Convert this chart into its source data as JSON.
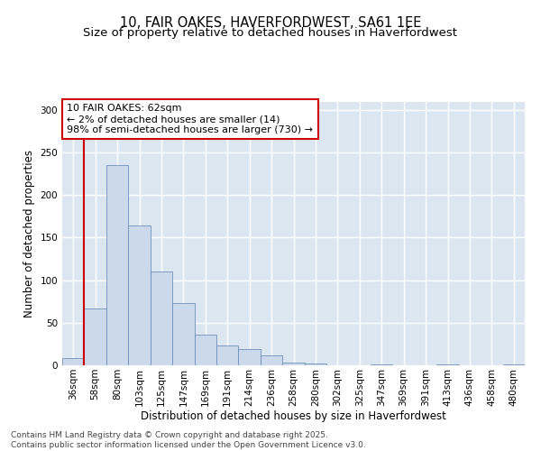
{
  "title_line1": "10, FAIR OAKES, HAVERFORDWEST, SA61 1EE",
  "title_line2": "Size of property relative to detached houses in Haverfordwest",
  "xlabel": "Distribution of detached houses by size in Haverfordwest",
  "ylabel": "Number of detached properties",
  "categories": [
    "36sqm",
    "58sqm",
    "80sqm",
    "103sqm",
    "125sqm",
    "147sqm",
    "169sqm",
    "191sqm",
    "214sqm",
    "236sqm",
    "258sqm",
    "280sqm",
    "302sqm",
    "325sqm",
    "347sqm",
    "369sqm",
    "391sqm",
    "413sqm",
    "436sqm",
    "458sqm",
    "480sqm"
  ],
  "values": [
    8,
    67,
    235,
    164,
    110,
    73,
    36,
    23,
    19,
    12,
    3,
    2,
    0,
    0,
    1,
    0,
    0,
    1,
    0,
    0,
    1
  ],
  "bar_color": "#ccd9ec",
  "bar_edge_color": "#7090bb",
  "vline_x": 0.5,
  "vline_color": "#cc0000",
  "annotation_text": "10 FAIR OAKES: 62sqm\n← 2% of detached houses are smaller (14)\n98% of semi-detached houses are larger (730) →",
  "annotation_box_color": "#ffffff",
  "annotation_box_edge": "#cc0000",
  "ylim": [
    0,
    310
  ],
  "yticks": [
    0,
    50,
    100,
    150,
    200,
    250,
    300
  ],
  "plot_bg_color": "#dce6f0",
  "grid_color": "#ffffff",
  "footer_text": "Contains HM Land Registry data © Crown copyright and database right 2025.\nContains public sector information licensed under the Open Government Licence v3.0.",
  "title_fontsize": 10.5,
  "subtitle_fontsize": 9.5,
  "axis_label_fontsize": 8.5,
  "tick_fontsize": 7.5,
  "annotation_fontsize": 8,
  "footer_fontsize": 6.5
}
